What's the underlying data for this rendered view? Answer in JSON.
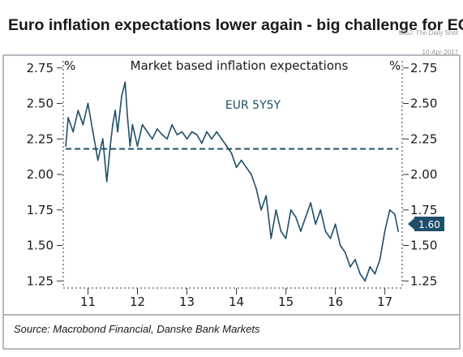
{
  "header": {
    "title": "Euro inflation expectations lower again - big challenge for ECB",
    "credit_line1": "WSJ: The Daily Shot",
    "credit_line2": "10-Apr-2017"
  },
  "footer": {
    "source": "Source: Macrobond Financial, Danske Bank Markets"
  },
  "colors": {
    "series": "#1f4e6b",
    "frame": "#9aa3ab",
    "text": "#1a1a1a"
  },
  "chart_data": {
    "type": "line",
    "title": "Market based inflation expectations",
    "left_axis_unit": "%",
    "right_axis_unit": "%",
    "ylim": [
      1.2,
      2.8
    ],
    "yticks": [
      1.25,
      1.5,
      1.75,
      2.0,
      2.25,
      2.5,
      2.75
    ],
    "ytick_labels": [
      "1.25",
      "1.50",
      "1.75",
      "2.00",
      "2.25",
      "2.50",
      "2.75"
    ],
    "xlim": [
      2010.5,
      2017.35
    ],
    "xticks": [
      2011,
      2012,
      2013,
      2014,
      2015,
      2016,
      2017
    ],
    "xtick_labels": [
      "11",
      "12",
      "13",
      "14",
      "15",
      "16",
      "17"
    ],
    "grid": false,
    "series": [
      {
        "name": "EUR 5Y5Y",
        "x": [
          2010.55,
          2010.6,
          2010.7,
          2010.8,
          2010.9,
          2011.0,
          2011.1,
          2011.2,
          2011.3,
          2011.38,
          2011.45,
          2011.5,
          2011.55,
          2011.6,
          2011.68,
          2011.75,
          2011.8,
          2011.85,
          2011.9,
          2012.0,
          2012.1,
          2012.2,
          2012.3,
          2012.4,
          2012.5,
          2012.6,
          2012.7,
          2012.8,
          2012.9,
          2013.0,
          2013.1,
          2013.2,
          2013.3,
          2013.4,
          2013.5,
          2013.6,
          2013.7,
          2013.8,
          2013.9,
          2014.0,
          2014.1,
          2014.2,
          2014.3,
          2014.4,
          2014.5,
          2014.6,
          2014.7,
          2014.8,
          2014.9,
          2015.0,
          2015.05,
          2015.1,
          2015.2,
          2015.3,
          2015.4,
          2015.5,
          2015.6,
          2015.7,
          2015.8,
          2015.9,
          2016.0,
          2016.1,
          2016.2,
          2016.3,
          2016.4,
          2016.5,
          2016.6,
          2016.7,
          2016.8,
          2016.9,
          2017.0,
          2017.1,
          2017.2,
          2017.27
        ],
        "values": [
          2.2,
          2.4,
          2.3,
          2.45,
          2.35,
          2.5,
          2.3,
          2.1,
          2.25,
          1.95,
          2.2,
          2.35,
          2.45,
          2.3,
          2.55,
          2.65,
          2.4,
          2.2,
          2.35,
          2.2,
          2.35,
          2.3,
          2.25,
          2.32,
          2.28,
          2.25,
          2.35,
          2.28,
          2.3,
          2.25,
          2.3,
          2.28,
          2.22,
          2.3,
          2.25,
          2.3,
          2.25,
          2.2,
          2.15,
          2.05,
          2.1,
          2.05,
          2.0,
          1.9,
          1.75,
          1.85,
          1.55,
          1.75,
          1.6,
          1.55,
          1.65,
          1.75,
          1.7,
          1.6,
          1.7,
          1.8,
          1.65,
          1.75,
          1.6,
          1.55,
          1.65,
          1.5,
          1.45,
          1.35,
          1.4,
          1.3,
          1.25,
          1.35,
          1.3,
          1.4,
          1.6,
          1.75,
          1.72,
          1.6
        ],
        "last_value_label": "1.60"
      },
      {
        "name": "",
        "style": "dashed",
        "x": [
          2010.55,
          2017.27
        ],
        "values": [
          2.18,
          2.18
        ]
      }
    ]
  }
}
